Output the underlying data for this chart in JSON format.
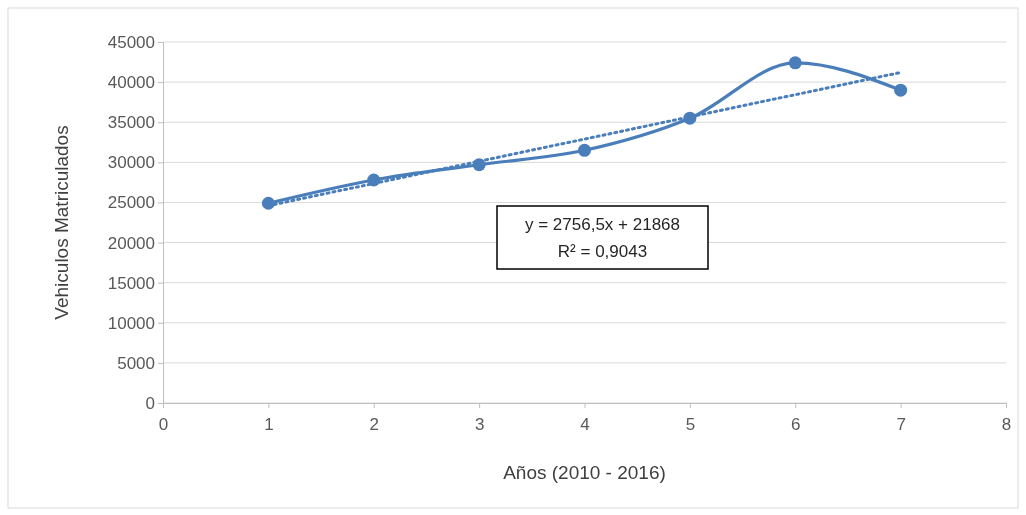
{
  "chart_data": {
    "type": "line",
    "xlabel": "Años (2010 - 2016)",
    "ylabel": "Vehiculos Matriculados",
    "xlim": [
      0,
      8
    ],
    "xticks": [
      0,
      1,
      2,
      3,
      4,
      5,
      6,
      7,
      8
    ],
    "ylim": [
      0,
      45000
    ],
    "yticks": [
      0,
      5000,
      10000,
      15000,
      20000,
      25000,
      30000,
      35000,
      40000,
      45000
    ],
    "grid": "y",
    "series": [
      {
        "x": [
          1,
          2,
          3,
          4,
          5,
          6,
          7
        ],
        "values": [
          24900,
          27800,
          29700,
          31500,
          35500,
          42400,
          39000
        ],
        "color": "#4a7ebb",
        "marker": "circle",
        "line_style": "solid"
      },
      {
        "type": "line",
        "x": [
          1,
          7
        ],
        "values": [
          24600,
          41200
        ],
        "color": "#4a7ebb",
        "marker": "none",
        "line_style": "dotted"
      }
    ],
    "annotations": [
      "y = 2756,5x + 21868",
      "R² = 0,9043"
    ]
  }
}
